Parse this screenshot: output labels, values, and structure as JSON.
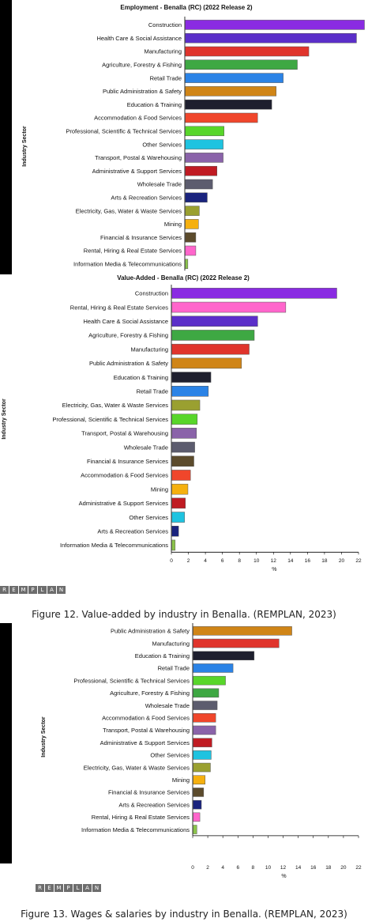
{
  "logo_text": [
    "R",
    "E",
    "M",
    "P",
    "L",
    "A",
    "N"
  ],
  "captions": {
    "fig12": "Figure 12. Value-added by industry in Benalla. (REMPLAN, 2023)",
    "fig13": "Figure 13. Wages & salaries by industry in Benalla. (REMPLAN, 2023)"
  },
  "chart_data": [
    {
      "type": "bar",
      "orientation": "horizontal",
      "title": "Employment - Benalla (RC) (2022 Release 2)",
      "ylabel": "Industry Sector",
      "xlabel": "",
      "xlim": [
        0,
        22
      ],
      "ticks": [],
      "categories": [
        "Construction",
        "Health Care & Social Assistance",
        "Manufacturing",
        "Agriculture, Forestry & Fishing",
        "Retail Trade",
        "Public Administration & Safety",
        "Education & Training",
        "Accommodation & Food Services",
        "Professional, Scientific & Technical Services",
        "Other Services",
        "Transport, Postal & Warehousing",
        "Administrative & Support Services",
        "Wholesale Trade",
        "Arts & Recreation Services",
        "Electricity, Gas, Water & Waste Services",
        "Mining",
        "Financial & Insurance Services",
        "Rental, Hiring & Real Estate Services",
        "Information Media & Telecommunications"
      ],
      "values": [
        20.3,
        19.4,
        14.0,
        12.7,
        11.1,
        10.3,
        9.8,
        8.2,
        4.4,
        4.3,
        4.3,
        3.6,
        3.1,
        2.5,
        1.6,
        1.5,
        1.2,
        1.2,
        0.3
      ],
      "colors": [
        "#8a2be2",
        "#5b2fc9",
        "#e0342c",
        "#3ea843",
        "#2b83e6",
        "#d08517",
        "#1e1f2e",
        "#f0462b",
        "#58d62a",
        "#1ec3e0",
        "#8a63a9",
        "#c01b22",
        "#5c5c6e",
        "#1a237e",
        "#9aa030",
        "#f5b00f",
        "#5c4b2c",
        "#ff66cc",
        "#8bc34a"
      ],
      "grid": false
    },
    {
      "type": "bar",
      "orientation": "horizontal",
      "title": "Value-Added - Benalla (RC) (2022 Release 2)",
      "ylabel": "Industry Sector",
      "xlabel": "%",
      "xlim": [
        0,
        22
      ],
      "ticks": [
        "0",
        "2",
        "4",
        "6",
        "8",
        "10",
        "12",
        "14",
        "16",
        "18",
        "20",
        "22"
      ],
      "categories": [
        "Construction",
        "Rental, Hiring & Real Estate Services",
        "Health Care & Social Assistance",
        "Agriculture, Forestry & Fishing",
        "Manufacturing",
        "Public Administration & Safety",
        "Education & Training",
        "Retail Trade",
        "Electricity, Gas, Water & Waste Services",
        "Professional, Scientific & Technical Services",
        "Transport, Postal & Warehousing",
        "Wholesale Trade",
        "Financial & Insurance Services",
        "Accommodation & Food Services",
        "Mining",
        "Administrative & Support Services",
        "Other Services",
        "Arts & Recreation Services",
        "Information Media & Telecommunications"
      ],
      "values": [
        19.4,
        13.4,
        10.1,
        9.7,
        9.1,
        8.2,
        4.6,
        4.3,
        3.3,
        3.0,
        2.9,
        2.7,
        2.6,
        2.2,
        1.9,
        1.6,
        1.5,
        0.8,
        0.4
      ],
      "colors": [
        "#8a2be2",
        "#ff66cc",
        "#5b2fc9",
        "#3ea843",
        "#e0342c",
        "#d08517",
        "#1e1f2e",
        "#2b83e6",
        "#9aa030",
        "#58d62a",
        "#8a63a9",
        "#5c5c6e",
        "#5c4b2c",
        "#f0462b",
        "#f5b00f",
        "#c01b22",
        "#1ec3e0",
        "#1a237e",
        "#8bc34a"
      ],
      "grid": false
    },
    {
      "type": "bar",
      "orientation": "horizontal",
      "title": "",
      "ylabel": "Industry Sector",
      "xlabel": "%",
      "xlim": [
        0,
        22
      ],
      "ticks": [
        "0",
        "2",
        "4",
        "6",
        "8",
        "10",
        "12",
        "14",
        "16",
        "18",
        "20",
        "22"
      ],
      "categories": [
        "Public Administration & Safety",
        "Manufacturing",
        "Education & Training",
        "Retail Trade",
        "Professional, Scientific & Technical Services",
        "Agriculture, Forestry & Fishing",
        "Wholesale Trade",
        "Accommodation & Food Services",
        "Transport, Postal & Warehousing",
        "Administrative & Support Services",
        "Other Services",
        "Electricity, Gas, Water & Waste Services",
        "Mining",
        "Financial & Insurance Services",
        "Arts & Recreation Services",
        "Rental, Hiring & Real Estate Services",
        "Information Media & Telecommunications"
      ],
      "values": [
        13.1,
        11.4,
        8.1,
        5.3,
        4.3,
        3.4,
        3.2,
        3.0,
        3.0,
        2.5,
        2.4,
        2.3,
        1.6,
        1.4,
        1.1,
        0.9,
        0.5
      ],
      "colors": [
        "#d08517",
        "#e0342c",
        "#1e1f2e",
        "#2b83e6",
        "#58d62a",
        "#3ea843",
        "#5c5c6e",
        "#f0462b",
        "#8a63a9",
        "#c01b22",
        "#1ec3e0",
        "#9aa030",
        "#f5b00f",
        "#5c4b2c",
        "#1a237e",
        "#ff66cc",
        "#8bc34a"
      ],
      "grid": false
    }
  ]
}
